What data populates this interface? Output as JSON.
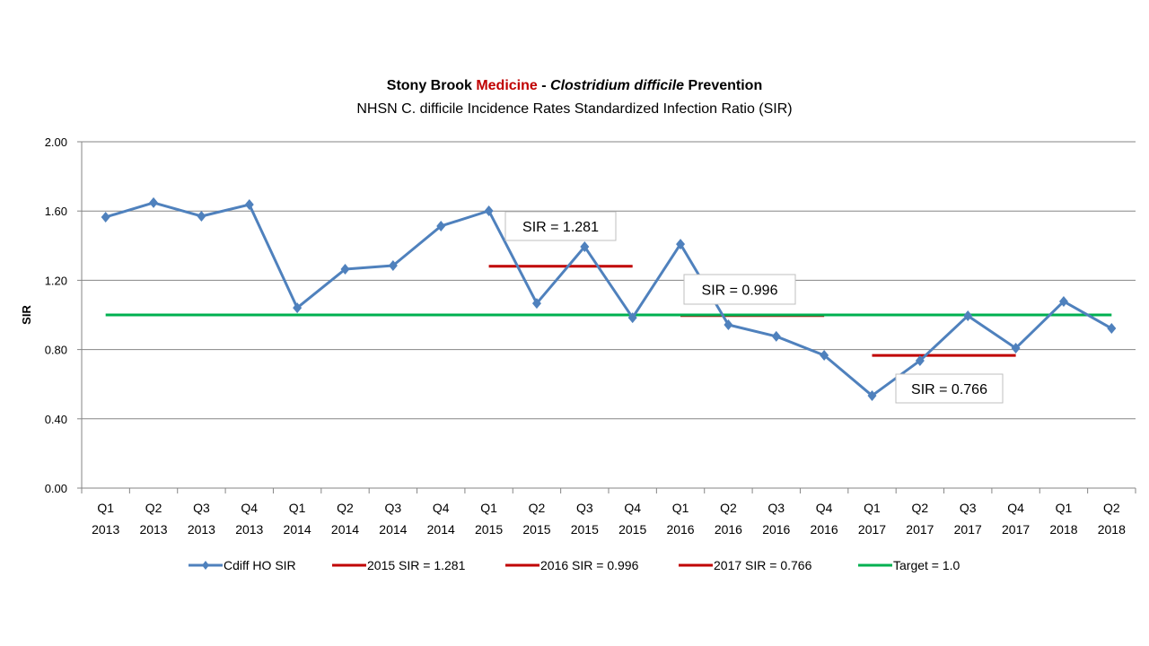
{
  "title": {
    "part1": "Stony Brook ",
    "part2": "Medicine",
    "part3": " - ",
    "part4": "Clostridium difficile",
    "part5": " Prevention"
  },
  "subtitle": "NHSN C. difficile Incidence Rates Standardized Infection Ratio (SIR)",
  "colors": {
    "series": "#4f81bd",
    "sir_lines": "#c00000",
    "target": "#00b050"
  },
  "chart_data": {
    "type": "line",
    "title": "Stony Brook Medicine - Clostridium difficile Prevention",
    "subtitle": "NHSN C. difficile Incidence Rates Standardized Infection Ratio (SIR)",
    "ylabel": "SIR",
    "xlabel": "",
    "ylim": [
      0,
      2
    ],
    "yticks": [
      "0.00",
      "0.40",
      "0.80",
      "1.20",
      "1.60",
      "2.00"
    ],
    "grid": true,
    "legend_position": "bottom",
    "categories": [
      [
        "Q1",
        "2013"
      ],
      [
        "Q2",
        "2013"
      ],
      [
        "Q3",
        "2013"
      ],
      [
        "Q4",
        "2013"
      ],
      [
        "Q1",
        "2014"
      ],
      [
        "Q2",
        "2014"
      ],
      [
        "Q3",
        "2014"
      ],
      [
        "Q4",
        "2014"
      ],
      [
        "Q1",
        "2015"
      ],
      [
        "Q2",
        "2015"
      ],
      [
        "Q3",
        "2015"
      ],
      [
        "Q4",
        "2015"
      ],
      [
        "Q1",
        "2016"
      ],
      [
        "Q2",
        "2016"
      ],
      [
        "Q3",
        "2016"
      ],
      [
        "Q4",
        "2016"
      ],
      [
        "Q1",
        "2017"
      ],
      [
        "Q2",
        "2017"
      ],
      [
        "Q3",
        "2017"
      ],
      [
        "Q4",
        "2017"
      ],
      [
        "Q1",
        "2018"
      ],
      [
        "Q2",
        "2018"
      ]
    ],
    "series": [
      {
        "name": "Cdiff HO SIR",
        "values": [
          1.565,
          1.648,
          1.57,
          1.637,
          1.041,
          1.264,
          1.285,
          1.513,
          1.601,
          1.067,
          1.394,
          0.984,
          1.409,
          0.943,
          0.876,
          0.767,
          0.534,
          0.736,
          0.995,
          0.808,
          1.078,
          0.922
        ]
      },
      {
        "name": "2015 SIR = 1.281",
        "value": 1.281,
        "from": 8,
        "to": 11
      },
      {
        "name": "2016 SIR = 0.996",
        "value": 0.996,
        "from": 12,
        "to": 15
      },
      {
        "name": "2017 SIR = 0.766",
        "value": 0.766,
        "from": 16,
        "to": 19
      },
      {
        "name": "Target = 1.0",
        "value": 1.0,
        "from": 0,
        "to": 21
      }
    ],
    "annotations": [
      "SIR = 1.281",
      "SIR = 0.996",
      "SIR = 0.766"
    ]
  }
}
